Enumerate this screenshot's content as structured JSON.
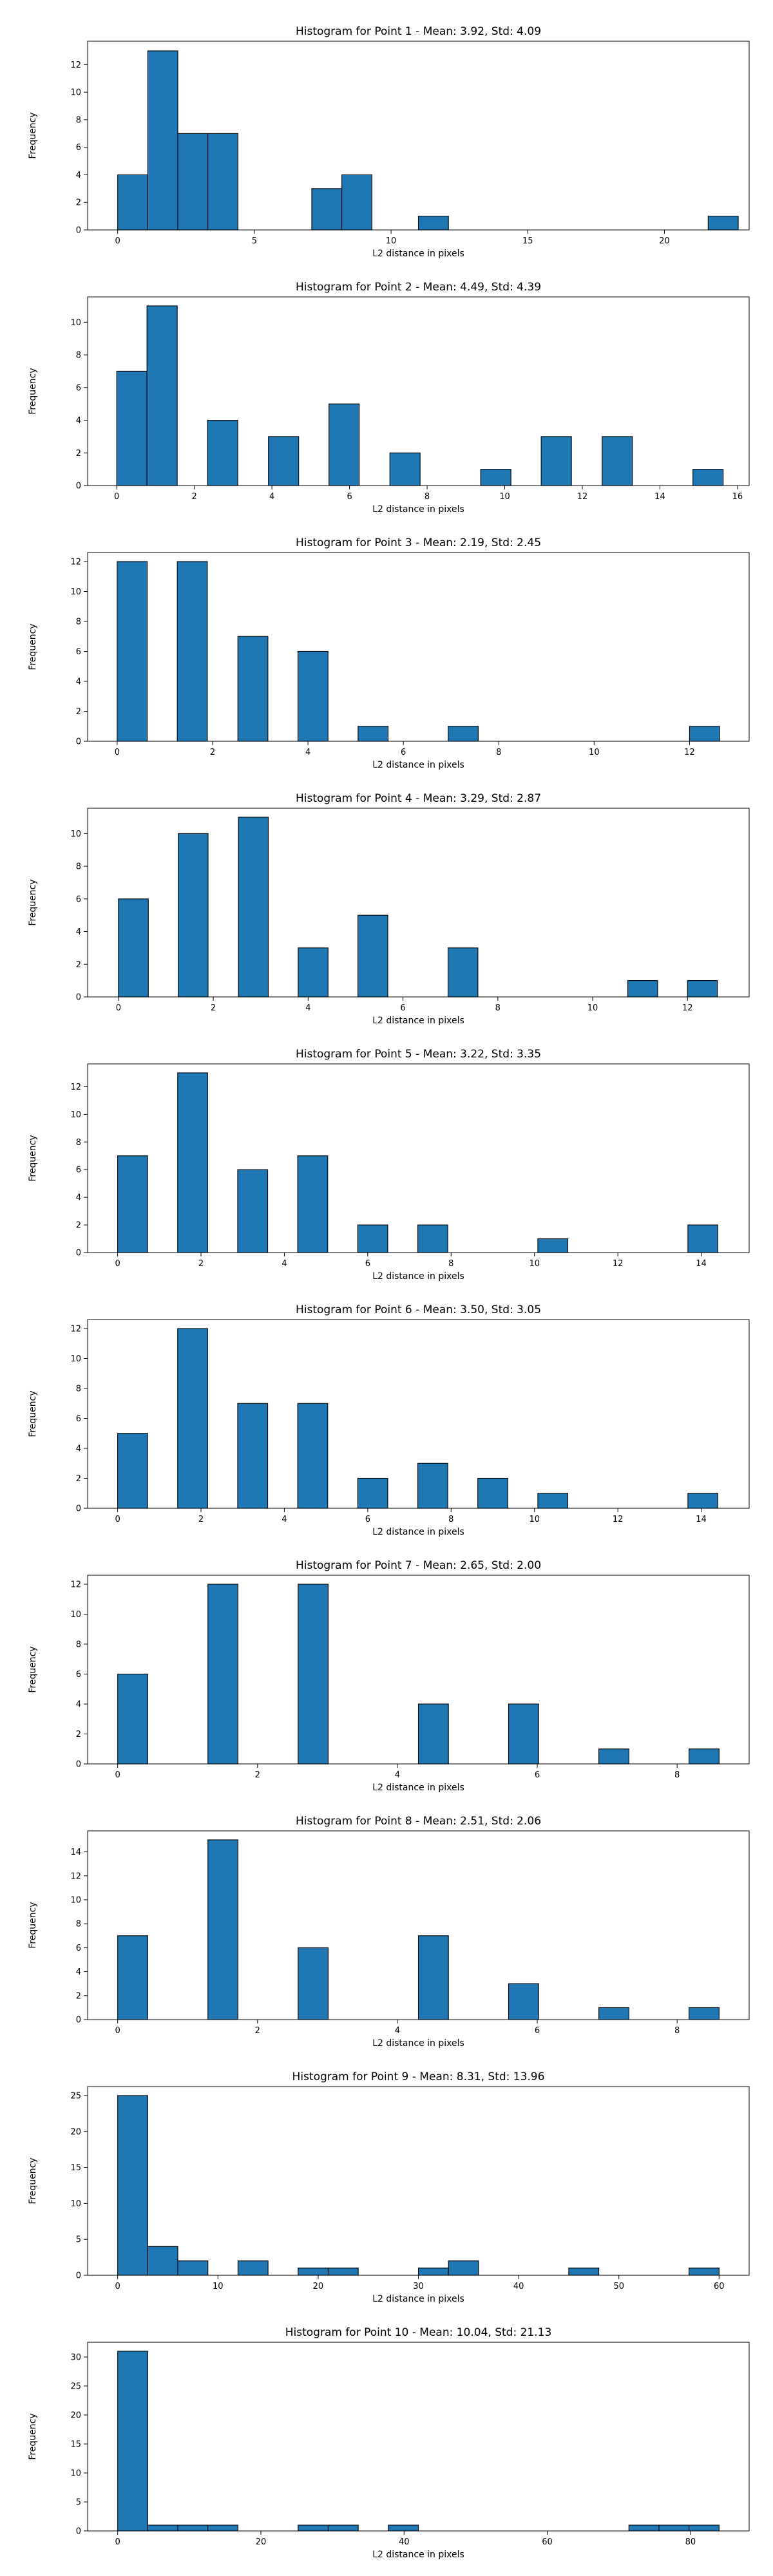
{
  "chart_data": [
    {
      "type": "bar",
      "title": "Histogram for Point 1 - Mean: 3.92, Std: 4.09",
      "xlabel": "L2 distance in pixels",
      "ylabel": "Frequency",
      "xlim": [
        -1.1,
        23.1
      ],
      "ylim": [
        0,
        13.7
      ],
      "xticks": [
        0,
        5,
        10,
        15,
        20
      ],
      "yticks": [
        0,
        2,
        4,
        6,
        8,
        10,
        12
      ],
      "bin_width": 1.1,
      "bins": [
        {
          "start": 0.0,
          "count": 4
        },
        {
          "start": 1.1,
          "count": 13
        },
        {
          "start": 2.2,
          "count": 7
        },
        {
          "start": 3.3,
          "count": 7
        },
        {
          "start": 7.1,
          "count": 3
        },
        {
          "start": 8.2,
          "count": 4
        },
        {
          "start": 11.0,
          "count": 1
        },
        {
          "start": 21.6,
          "count": 1
        }
      ]
    },
    {
      "type": "bar",
      "title": "Histogram for Point 2 - Mean: 4.49, Std: 4.39",
      "xlabel": "L2 distance in pixels",
      "ylabel": "Frequency",
      "xlim": [
        -0.75,
        16.3
      ],
      "ylim": [
        0,
        11.55
      ],
      "xticks": [
        0,
        2,
        4,
        6,
        8,
        10,
        12,
        14,
        16
      ],
      "yticks": [
        0,
        2,
        4,
        6,
        8,
        10
      ],
      "bin_width": 0.78,
      "bins": [
        {
          "start": 0.0,
          "count": 7
        },
        {
          "start": 0.78,
          "count": 11
        },
        {
          "start": 2.34,
          "count": 4
        },
        {
          "start": 3.91,
          "count": 3
        },
        {
          "start": 5.47,
          "count": 5
        },
        {
          "start": 7.04,
          "count": 2
        },
        {
          "start": 9.38,
          "count": 1
        },
        {
          "start": 10.94,
          "count": 3
        },
        {
          "start": 12.51,
          "count": 3
        },
        {
          "start": 14.85,
          "count": 1
        }
      ]
    },
    {
      "type": "bar",
      "title": "Histogram for Point 3 - Mean: 2.19, Std: 2.45",
      "xlabel": "L2 distance in pixels",
      "ylabel": "Frequency",
      "xlim": [
        -0.62,
        13.25
      ],
      "ylim": [
        0,
        12.6
      ],
      "xticks": [
        0,
        2,
        4,
        6,
        8,
        10,
        12
      ],
      "yticks": [
        0,
        2,
        4,
        6,
        8,
        10,
        12
      ],
      "bin_width": 0.63,
      "bins": [
        {
          "start": 0.0,
          "count": 12
        },
        {
          "start": 1.26,
          "count": 12
        },
        {
          "start": 2.53,
          "count": 7
        },
        {
          "start": 3.79,
          "count": 6
        },
        {
          "start": 5.05,
          "count": 1
        },
        {
          "start": 6.94,
          "count": 1
        },
        {
          "start": 12.0,
          "count": 1
        }
      ]
    },
    {
      "type": "bar",
      "title": "Histogram for Point 4 - Mean: 3.29, Std: 2.87",
      "xlabel": "L2 distance in pixels",
      "ylabel": "Frequency",
      "xlim": [
        -0.65,
        13.3
      ],
      "ylim": [
        0,
        11.55
      ],
      "xticks": [
        0,
        2,
        4,
        6,
        8,
        10,
        12
      ],
      "yticks": [
        0,
        2,
        4,
        6,
        8,
        10
      ],
      "bin_width": 0.63,
      "bins": [
        {
          "start": 0.0,
          "count": 6
        },
        {
          "start": 1.26,
          "count": 10
        },
        {
          "start": 2.53,
          "count": 11
        },
        {
          "start": 3.79,
          "count": 3
        },
        {
          "start": 5.05,
          "count": 5
        },
        {
          "start": 6.95,
          "count": 3
        },
        {
          "start": 10.74,
          "count": 1
        },
        {
          "start": 12.0,
          "count": 1
        }
      ]
    },
    {
      "type": "bar",
      "title": "Histogram for Point 5 - Mean: 3.22, Std: 3.35",
      "xlabel": "L2 distance in pixels",
      "ylabel": "Frequency",
      "xlim": [
        -0.72,
        15.15
      ],
      "ylim": [
        0,
        13.65
      ],
      "xticks": [
        0,
        2,
        4,
        6,
        8,
        10,
        12,
        14
      ],
      "yticks": [
        0,
        2,
        4,
        6,
        8,
        10,
        12
      ],
      "bin_width": 0.72,
      "bins": [
        {
          "start": 0.0,
          "count": 7
        },
        {
          "start": 1.44,
          "count": 13
        },
        {
          "start": 2.88,
          "count": 6
        },
        {
          "start": 4.32,
          "count": 7
        },
        {
          "start": 5.76,
          "count": 2
        },
        {
          "start": 7.2,
          "count": 2
        },
        {
          "start": 10.08,
          "count": 1
        },
        {
          "start": 13.68,
          "count": 2
        }
      ]
    },
    {
      "type": "bar",
      "title": "Histogram for Point 6 - Mean: 3.50, Std: 3.05",
      "xlabel": "L2 distance in pixels",
      "ylabel": "Frequency",
      "xlim": [
        -0.72,
        15.15
      ],
      "ylim": [
        0,
        12.6
      ],
      "xticks": [
        0,
        2,
        4,
        6,
        8,
        10,
        12,
        14
      ],
      "yticks": [
        0,
        2,
        4,
        6,
        8,
        10,
        12
      ],
      "bin_width": 0.72,
      "bins": [
        {
          "start": 0.0,
          "count": 5
        },
        {
          "start": 1.44,
          "count": 12
        },
        {
          "start": 2.88,
          "count": 7
        },
        {
          "start": 4.32,
          "count": 7
        },
        {
          "start": 5.76,
          "count": 2
        },
        {
          "start": 7.2,
          "count": 3
        },
        {
          "start": 8.64,
          "count": 2
        },
        {
          "start": 10.08,
          "count": 1
        },
        {
          "start": 13.68,
          "count": 1
        }
      ]
    },
    {
      "type": "bar",
      "title": "Histogram for Point 7 - Mean: 2.65, Std: 2.00",
      "xlabel": "L2 distance in pixels",
      "ylabel": "Frequency",
      "xlim": [
        -0.43,
        9.03
      ],
      "ylim": [
        0,
        12.6
      ],
      "xticks": [
        0,
        2,
        4,
        6,
        8
      ],
      "yticks": [
        0,
        2,
        4,
        6,
        8,
        10,
        12
      ],
      "bin_width": 0.43,
      "bins": [
        {
          "start": 0.0,
          "count": 6
        },
        {
          "start": 1.29,
          "count": 12
        },
        {
          "start": 2.58,
          "count": 12
        },
        {
          "start": 4.3,
          "count": 4
        },
        {
          "start": 5.59,
          "count": 4
        },
        {
          "start": 6.88,
          "count": 1
        },
        {
          "start": 8.17,
          "count": 1
        }
      ]
    },
    {
      "type": "bar",
      "title": "Histogram for Point 8 - Mean: 2.51, Std: 2.06",
      "xlabel": "L2 distance in pixels",
      "ylabel": "Frequency",
      "xlim": [
        -0.43,
        9.03
      ],
      "ylim": [
        0,
        15.75
      ],
      "xticks": [
        0,
        2,
        4,
        6,
        8
      ],
      "yticks": [
        0,
        2,
        4,
        6,
        8,
        10,
        12,
        14
      ],
      "bin_width": 0.43,
      "bins": [
        {
          "start": 0.0,
          "count": 7
        },
        {
          "start": 1.29,
          "count": 15
        },
        {
          "start": 2.58,
          "count": 6
        },
        {
          "start": 4.3,
          "count": 7
        },
        {
          "start": 5.59,
          "count": 3
        },
        {
          "start": 6.88,
          "count": 1
        },
        {
          "start": 8.17,
          "count": 1
        }
      ]
    },
    {
      "type": "bar",
      "title": "Histogram for Point 9 - Mean: 8.31, Std: 13.96",
      "xlabel": "L2 distance in pixels",
      "ylabel": "Frequency",
      "xlim": [
        -3.0,
        63.0
      ],
      "ylim": [
        0,
        26.25
      ],
      "xticks": [
        0,
        10,
        20,
        30,
        40,
        50,
        60
      ],
      "yticks": [
        0,
        5,
        10,
        15,
        20,
        25
      ],
      "bin_width": 3.0,
      "bins": [
        {
          "start": 0.0,
          "count": 25
        },
        {
          "start": 3.0,
          "count": 4
        },
        {
          "start": 6.0,
          "count": 2
        },
        {
          "start": 12.0,
          "count": 2
        },
        {
          "start": 18.0,
          "count": 1
        },
        {
          "start": 21.0,
          "count": 1
        },
        {
          "start": 30.0,
          "count": 1
        },
        {
          "start": 33.0,
          "count": 2
        },
        {
          "start": 45.0,
          "count": 1
        },
        {
          "start": 57.0,
          "count": 1
        }
      ]
    },
    {
      "type": "bar",
      "title": "Histogram for Point 10 - Mean: 10.04, Std: 21.13",
      "xlabel": "L2 distance in pixels",
      "ylabel": "Frequency",
      "xlim": [
        -4.2,
        88.2
      ],
      "ylim": [
        0,
        32.55
      ],
      "xticks": [
        0,
        20,
        40,
        60,
        80
      ],
      "yticks": [
        0,
        5,
        10,
        15,
        20,
        25,
        30
      ],
      "bin_width": 4.2,
      "bins": [
        {
          "start": 0.0,
          "count": 31
        },
        {
          "start": 4.2,
          "count": 1
        },
        {
          "start": 8.4,
          "count": 1
        },
        {
          "start": 12.6,
          "count": 1
        },
        {
          "start": 25.2,
          "count": 1
        },
        {
          "start": 29.4,
          "count": 1
        },
        {
          "start": 37.8,
          "count": 1
        },
        {
          "start": 71.4,
          "count": 1
        },
        {
          "start": 75.6,
          "count": 1
        },
        {
          "start": 79.8,
          "count": 1
        }
      ]
    }
  ]
}
